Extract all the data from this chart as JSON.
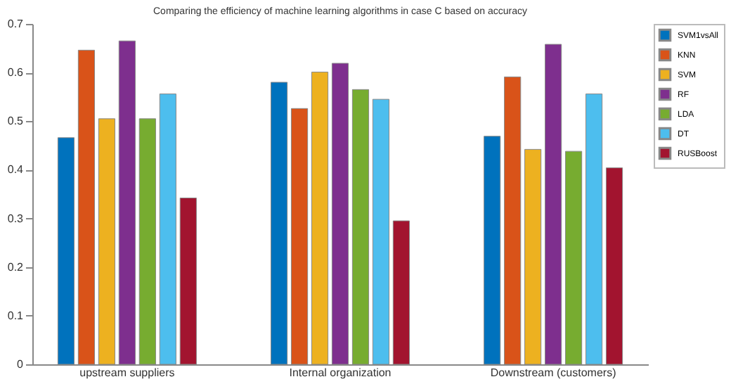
{
  "chart_data": {
    "type": "bar",
    "title": "Comparing the efficiency of machine learning algorithms in case C based on accuracy",
    "categories": [
      "upstream suppliers",
      "Internal organization",
      "Downstream (customers)"
    ],
    "series": [
      {
        "name": "SVM1vsAll",
        "color": "#0072bd",
        "values": [
          0.466,
          0.58,
          0.469
        ]
      },
      {
        "name": "KNN",
        "color": "#d95319",
        "values": [
          0.646,
          0.526,
          0.591
        ]
      },
      {
        "name": "SVM",
        "color": "#edb120",
        "values": [
          0.505,
          0.601,
          0.442
        ]
      },
      {
        "name": "RF",
        "color": "#7e2f8e",
        "values": [
          0.665,
          0.619,
          0.658
        ]
      },
      {
        "name": "LDA",
        "color": "#77ac30",
        "values": [
          0.505,
          0.565,
          0.438
        ]
      },
      {
        "name": "DT",
        "color": "#4dbeee",
        "values": [
          0.556,
          0.545,
          0.556
        ]
      },
      {
        "name": "RUSBoost",
        "color": "#a2142f",
        "values": [
          0.342,
          0.295,
          0.404
        ]
      }
    ],
    "ylim": [
      0,
      0.7
    ],
    "yticks": [
      0,
      0.1,
      0.2,
      0.3,
      0.4,
      0.5,
      0.6,
      0.7
    ],
    "grid": false,
    "legend": "right"
  }
}
